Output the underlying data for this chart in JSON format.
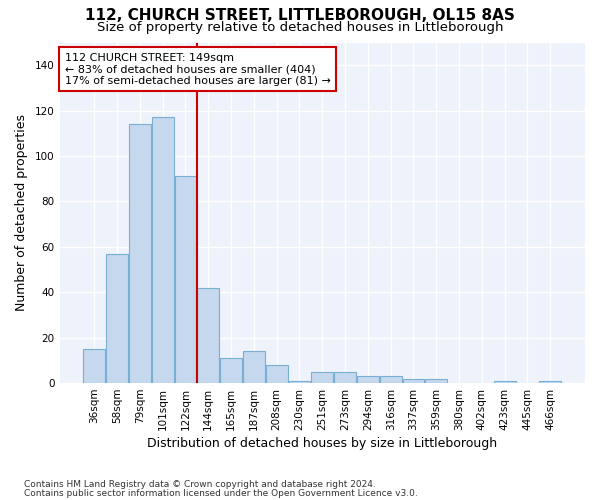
{
  "title": "112, CHURCH STREET, LITTLEBOROUGH, OL15 8AS",
  "subtitle": "Size of property relative to detached houses in Littleborough",
  "xlabel": "Distribution of detached houses by size in Littleborough",
  "ylabel": "Number of detached properties",
  "footnote1": "Contains HM Land Registry data © Crown copyright and database right 2024.",
  "footnote2": "Contains public sector information licensed under the Open Government Licence v3.0.",
  "categories": [
    "36sqm",
    "58sqm",
    "79sqm",
    "101sqm",
    "122sqm",
    "144sqm",
    "165sqm",
    "187sqm",
    "208sqm",
    "230sqm",
    "251sqm",
    "273sqm",
    "294sqm",
    "316sqm",
    "337sqm",
    "359sqm",
    "380sqm",
    "402sqm",
    "423sqm",
    "445sqm",
    "466sqm"
  ],
  "values": [
    15,
    57,
    114,
    117,
    91,
    42,
    11,
    14,
    8,
    1,
    5,
    5,
    3,
    3,
    2,
    2,
    0,
    0,
    1,
    0,
    1
  ],
  "bar_color": "#c5d8ee",
  "bar_edge_color": "#7aafd4",
  "vline_x_idx": 5,
  "vline_color": "#cc0000",
  "annotation_line1": "112 CHURCH STREET: 149sqm",
  "annotation_line2": "← 83% of detached houses are smaller (404)",
  "annotation_line3": "17% of semi-detached houses are larger (81) →",
  "annotation_box_color": "#cc0000",
  "ylim": [
    0,
    150
  ],
  "yticks": [
    0,
    20,
    40,
    60,
    80,
    100,
    120,
    140
  ],
  "background_color": "#ffffff",
  "plot_bg_color": "#eef2fb",
  "grid_color": "#ffffff",
  "title_fontsize": 11,
  "subtitle_fontsize": 9.5,
  "annotation_fontsize": 8,
  "tick_fontsize": 7.5,
  "xlabel_fontsize": 9,
  "ylabel_fontsize": 9
}
